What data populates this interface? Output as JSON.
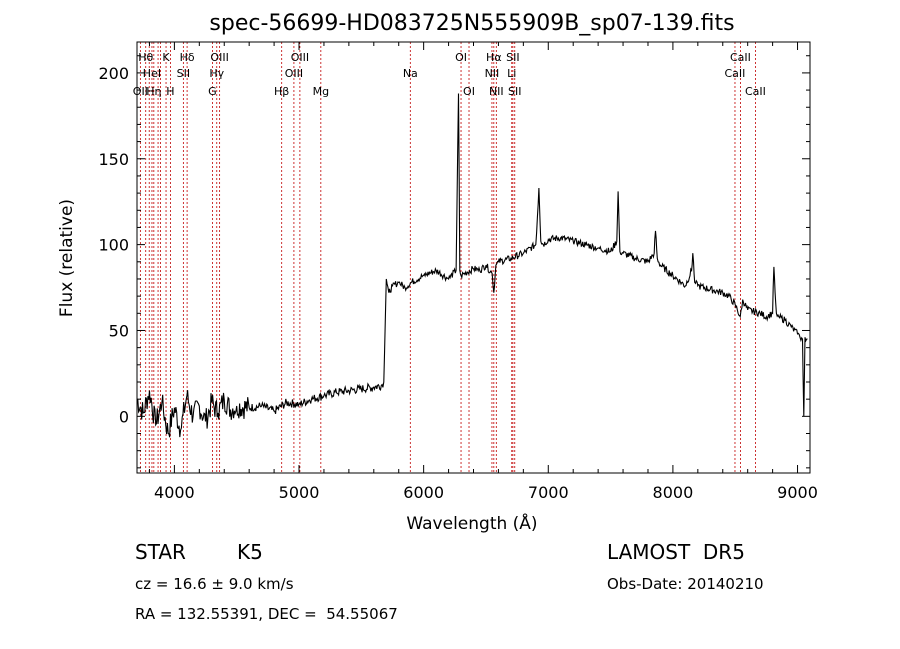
{
  "chart_data": {
    "type": "line",
    "title": "spec-56699-HD083725N555909B_sp07-139.fits",
    "xlabel": "Wavelength (Å)",
    "ylabel": "Flux (relative)",
    "xlim": [
      3700,
      9100
    ],
    "ylim": [
      -33,
      218
    ],
    "xticks": [
      4000,
      5000,
      6000,
      7000,
      8000,
      9000
    ],
    "yticks": [
      0,
      50,
      100,
      150,
      200
    ],
    "grid": false,
    "series": [
      {
        "x": [
          3700,
          3750,
          3800,
          3850,
          3900,
          3950,
          4000,
          4050,
          4100,
          4150,
          4200,
          4250,
          4300,
          4350,
          4400,
          4450,
          4500,
          4600,
          4700,
          4800,
          4900,
          5000,
          5100,
          5200,
          5300,
          5400,
          5500,
          5600,
          5660,
          5680,
          5700,
          5720,
          5750,
          5800,
          5850,
          5900,
          6000,
          6100,
          6200,
          6260,
          6280,
          6290,
          6300,
          6350,
          6400,
          6450,
          6500,
          6550,
          6563,
          6580,
          6600,
          6700,
          6800,
          6900,
          6925,
          6940,
          6960,
          7000,
          7100,
          7200,
          7300,
          7400,
          7500,
          7550,
          7560,
          7575,
          7600,
          7700,
          7800,
          7850,
          7860,
          7875,
          7900,
          8000,
          8100,
          8150,
          8160,
          8175,
          8200,
          8300,
          8400,
          8450,
          8500,
          8540,
          8560,
          8600,
          8700,
          8750,
          8800,
          8810,
          8820,
          8830,
          8850,
          8900,
          8950,
          9000,
          9020,
          9040,
          9050,
          9060,
          9080
        ],
        "y": [
          10,
          2,
          15,
          -5,
          8,
          -10,
          5,
          -8,
          12,
          0,
          6,
          -3,
          8,
          2,
          10,
          4,
          6,
          5,
          6,
          3,
          8,
          7,
          10,
          12,
          14,
          15,
          16,
          17,
          18,
          20,
          80,
          72,
          76,
          78,
          75,
          78,
          82,
          85,
          80,
          85,
          188,
          85,
          82,
          84,
          86,
          85,
          88,
          83,
          72,
          88,
          90,
          92,
          95,
          100,
          133,
          102,
          100,
          103,
          104,
          102,
          100,
          98,
          96,
          102,
          131,
          96,
          95,
          92,
          90,
          95,
          108,
          92,
          88,
          82,
          76,
          85,
          95,
          78,
          76,
          74,
          72,
          70,
          65,
          58,
          68,
          62,
          60,
          58,
          60,
          87,
          72,
          60,
          58,
          56,
          52,
          48,
          46,
          45,
          0,
          46,
          45
        ]
      }
    ],
    "lines": [
      {
        "wl": 3727,
        "label": "OII",
        "row": 3
      },
      {
        "wl": 3770,
        "label": "Hθ",
        "row": 1
      },
      {
        "wl": 3798,
        "label": "",
        "row": 0
      },
      {
        "wl": 3820,
        "label": "HeI",
        "row": 2
      },
      {
        "wl": 3835,
        "label": "Hη",
        "row": 3
      },
      {
        "wl": 3869,
        "label": "",
        "row": 0
      },
      {
        "wl": 3889,
        "label": "",
        "row": 0
      },
      {
        "wl": 3933,
        "label": "K",
        "row": 1
      },
      {
        "wl": 3968,
        "label": "H",
        "row": 3
      },
      {
        "wl": 4072,
        "label": "SII",
        "row": 2
      },
      {
        "wl": 4102,
        "label": "Hδ",
        "row": 1
      },
      {
        "wl": 4305,
        "label": "G",
        "row": 3
      },
      {
        "wl": 4340,
        "label": "Hγ",
        "row": 2
      },
      {
        "wl": 4363,
        "label": "OIII",
        "row": 1
      },
      {
        "wl": 4861,
        "label": "Hβ",
        "row": 3
      },
      {
        "wl": 4959,
        "label": "OIII",
        "row": 2
      },
      {
        "wl": 5007,
        "label": "OIII",
        "row": 1
      },
      {
        "wl": 5175,
        "label": "Mg",
        "row": 3
      },
      {
        "wl": 5893,
        "label": "Na",
        "row": 2
      },
      {
        "wl": 6300,
        "label": "OI",
        "row": 1
      },
      {
        "wl": 6364,
        "label": "OI",
        "row": 3
      },
      {
        "wl": 6548,
        "label": "NII",
        "row": 2
      },
      {
        "wl": 6563,
        "label": "Hα",
        "row": 1
      },
      {
        "wl": 6583,
        "label": "NII",
        "row": 3
      },
      {
        "wl": 6707,
        "label": "Li",
        "row": 2
      },
      {
        "wl": 6716,
        "label": "SII",
        "row": 1
      },
      {
        "wl": 6731,
        "label": "SII",
        "row": 3
      },
      {
        "wl": 8498,
        "label": "CaII",
        "row": 2
      },
      {
        "wl": 8542,
        "label": "CaII",
        "row": 1
      },
      {
        "wl": 8662,
        "label": "CaII",
        "row": 3
      }
    ]
  },
  "info": {
    "class": "STAR",
    "subclass": "K5",
    "survey": "LAMOST  DR5",
    "cz": "cz = 16.6 ± 9.0 km/s",
    "obsdate": "Obs-Date: 20140210",
    "radec": "RA = 132.55391, DEC =  54.55067"
  }
}
